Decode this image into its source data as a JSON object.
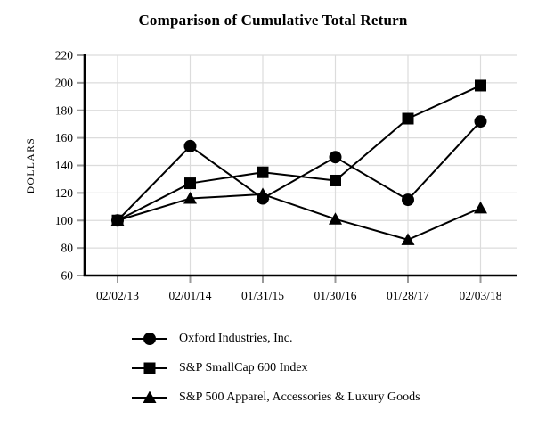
{
  "chart_data": {
    "type": "line",
    "title": "Comparison of Cumulative Total Return",
    "xlabel": "",
    "ylabel": "DOLLARS",
    "categories": [
      "02/02/13",
      "02/01/14",
      "01/31/15",
      "01/30/16",
      "01/28/17",
      "02/03/18"
    ],
    "series": [
      {
        "name": "Oxford Industries, Inc.",
        "marker": "circle",
        "values": [
          100,
          154,
          116,
          146,
          115,
          172
        ]
      },
      {
        "name": "S&P SmallCap 600 Index",
        "marker": "square",
        "values": [
          100,
          127,
          135,
          129,
          174,
          198
        ]
      },
      {
        "name": "S&P 500 Apparel, Accessories & Luxury Goods",
        "marker": "triangle",
        "values": [
          100,
          116,
          119,
          101,
          86,
          109
        ]
      }
    ],
    "ylim": [
      60,
      220
    ],
    "ytick_step": 20,
    "grid": true,
    "legend_position": "bottom-left",
    "colors": {
      "series": "#000000",
      "grid": "#dcdcdc",
      "tick": "#999999",
      "spine": "#000000",
      "background": "#ffffff",
      "text": "#000000"
    }
  }
}
